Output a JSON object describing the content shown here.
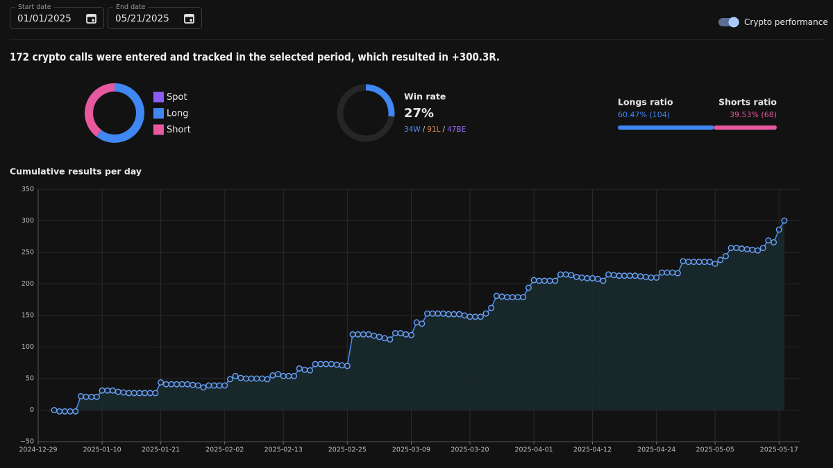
{
  "header": {
    "start_date": {
      "label": "Start date",
      "value": "01/01/2025"
    },
    "end_date": {
      "label": "End date",
      "value": "05/21/2025"
    },
    "toggle": {
      "label": "Crypto performance",
      "on": true
    }
  },
  "summary": "172 crypto calls were entered and tracked in the selected period, which resulted in +300.3R.",
  "chart_data": [
    {
      "type": "pie",
      "donut": true,
      "categories": [
        "Spot",
        "Long",
        "Short"
      ],
      "values": [
        0,
        60.47,
        39.53
      ],
      "colors": [
        "#8b5cf6",
        "#3f87f2",
        "#e8589f"
      ]
    },
    {
      "type": "gauge",
      "title": "Win rate",
      "value": 27,
      "value_label": "27%",
      "color": "#3f87f2",
      "breakdown": [
        {
          "label": "34W",
          "color": "#4a8cf0"
        },
        {
          "label": "91L",
          "color": "#d98b4f"
        },
        {
          "label": "47BE",
          "color": "#9b6cf0"
        }
      ],
      "separator": "/"
    },
    {
      "type": "ratio",
      "series": [
        {
          "name": "Longs ratio",
          "values": [
            60.47
          ],
          "value_labels": [
            "60.47% (104)"
          ],
          "color": "#3f87f2"
        },
        {
          "name": "Shorts ratio",
          "values": [
            39.53
          ],
          "value_labels": [
            "39.53% (68)"
          ],
          "color": "#e8589f"
        }
      ]
    },
    {
      "type": "line",
      "title": "Cumulative results per day",
      "color": "#4a8af4",
      "area": true,
      "grid": true,
      "x": [
        "2025-01-01",
        "2025-01-02",
        "2025-01-03",
        "2025-01-04",
        "2025-01-05",
        "2025-01-06",
        "2025-01-07",
        "2025-01-08",
        "2025-01-09",
        "2025-01-10",
        "2025-01-11",
        "2025-01-12",
        "2025-01-13",
        "2025-01-14",
        "2025-01-15",
        "2025-01-16",
        "2025-01-17",
        "2025-01-18",
        "2025-01-19",
        "2025-01-20",
        "2025-01-21",
        "2025-01-22",
        "2025-01-23",
        "2025-01-24",
        "2025-01-25",
        "2025-01-26",
        "2025-01-27",
        "2025-01-28",
        "2025-01-29",
        "2025-01-30",
        "2025-01-31",
        "2025-02-01",
        "2025-02-02",
        "2025-02-03",
        "2025-02-04",
        "2025-02-05",
        "2025-02-06",
        "2025-02-07",
        "2025-02-08",
        "2025-02-09",
        "2025-02-10",
        "2025-02-11",
        "2025-02-12",
        "2025-02-13",
        "2025-02-14",
        "2025-02-15",
        "2025-02-16",
        "2025-02-17",
        "2025-02-18",
        "2025-02-19",
        "2025-02-20",
        "2025-02-21",
        "2025-02-22",
        "2025-02-23",
        "2025-02-24",
        "2025-02-25",
        "2025-02-26",
        "2025-02-27",
        "2025-02-28",
        "2025-03-01",
        "2025-03-02",
        "2025-03-03",
        "2025-03-04",
        "2025-03-05",
        "2025-03-06",
        "2025-03-07",
        "2025-03-08",
        "2025-03-09",
        "2025-03-10",
        "2025-03-11",
        "2025-03-12",
        "2025-03-13",
        "2025-03-14",
        "2025-03-15",
        "2025-03-16",
        "2025-03-17",
        "2025-03-18",
        "2025-03-19",
        "2025-03-20",
        "2025-03-21",
        "2025-03-22",
        "2025-03-23",
        "2025-03-24",
        "2025-03-25",
        "2025-03-26",
        "2025-03-27",
        "2025-03-28",
        "2025-03-29",
        "2025-03-30",
        "2025-03-31",
        "2025-04-01",
        "2025-04-02",
        "2025-04-03",
        "2025-04-04",
        "2025-04-05",
        "2025-04-06",
        "2025-04-07",
        "2025-04-08",
        "2025-04-09",
        "2025-04-10",
        "2025-04-11",
        "2025-04-12",
        "2025-04-13",
        "2025-04-14",
        "2025-04-15",
        "2025-04-16",
        "2025-04-17",
        "2025-04-18",
        "2025-04-19",
        "2025-04-20",
        "2025-04-21",
        "2025-04-22",
        "2025-04-23",
        "2025-04-24",
        "2025-04-25",
        "2025-04-26",
        "2025-04-27",
        "2025-04-28",
        "2025-04-29",
        "2025-04-30",
        "2025-05-01",
        "2025-05-02",
        "2025-05-03",
        "2025-05-04",
        "2025-05-05",
        "2025-05-06",
        "2025-05-07",
        "2025-05-08",
        "2025-05-09",
        "2025-05-10",
        "2025-05-11",
        "2025-05-12",
        "2025-05-13",
        "2025-05-14",
        "2025-05-15",
        "2025-05-16",
        "2025-05-17",
        "2025-05-18"
      ],
      "values": [
        0,
        -2,
        -2,
        -2,
        -2,
        22,
        21,
        21,
        21,
        31,
        31,
        31,
        29,
        28,
        27,
        27,
        27,
        27,
        27,
        27,
        44,
        41,
        41,
        41,
        41,
        41,
        40,
        39,
        36,
        39,
        39,
        39,
        39,
        49,
        54,
        51,
        50,
        50,
        50,
        50,
        49,
        55,
        57,
        54,
        54,
        54,
        66,
        64,
        63,
        73,
        73,
        73,
        73,
        72,
        71,
        70,
        120,
        120,
        120,
        120,
        118,
        116,
        114,
        112,
        122,
        122,
        120,
        119,
        139,
        137,
        153,
        153,
        153,
        153,
        152,
        152,
        152,
        150,
        148,
        148,
        148,
        153,
        162,
        181,
        180,
        179,
        179,
        179,
        179,
        194,
        206,
        205,
        205,
        205,
        205,
        215,
        215,
        214,
        211,
        210,
        209,
        209,
        208,
        205,
        215,
        214,
        213,
        213,
        213,
        213,
        212,
        211,
        210,
        210,
        218,
        218,
        218,
        217,
        236,
        235,
        235,
        235,
        235,
        235,
        232,
        238,
        244,
        257,
        257,
        256,
        255,
        254,
        253,
        257,
        269,
        266,
        286,
        300.3
      ],
      "xlim": [
        "2024-12-29",
        "2025-05-21"
      ],
      "xticks": [
        "2024-12-29",
        "2025-01-10",
        "2025-01-21",
        "2025-02-02",
        "2025-02-13",
        "2025-02-25",
        "2025-03-09",
        "2025-03-20",
        "2025-04-01",
        "2025-04-12",
        "2025-04-24",
        "2025-05-05",
        "2025-05-17"
      ],
      "ylim": [
        -50,
        350
      ],
      "yticks": [
        {
          "value": -50,
          "label": "−50"
        },
        0,
        50,
        100,
        150,
        200,
        250,
        300,
        350
      ]
    }
  ]
}
